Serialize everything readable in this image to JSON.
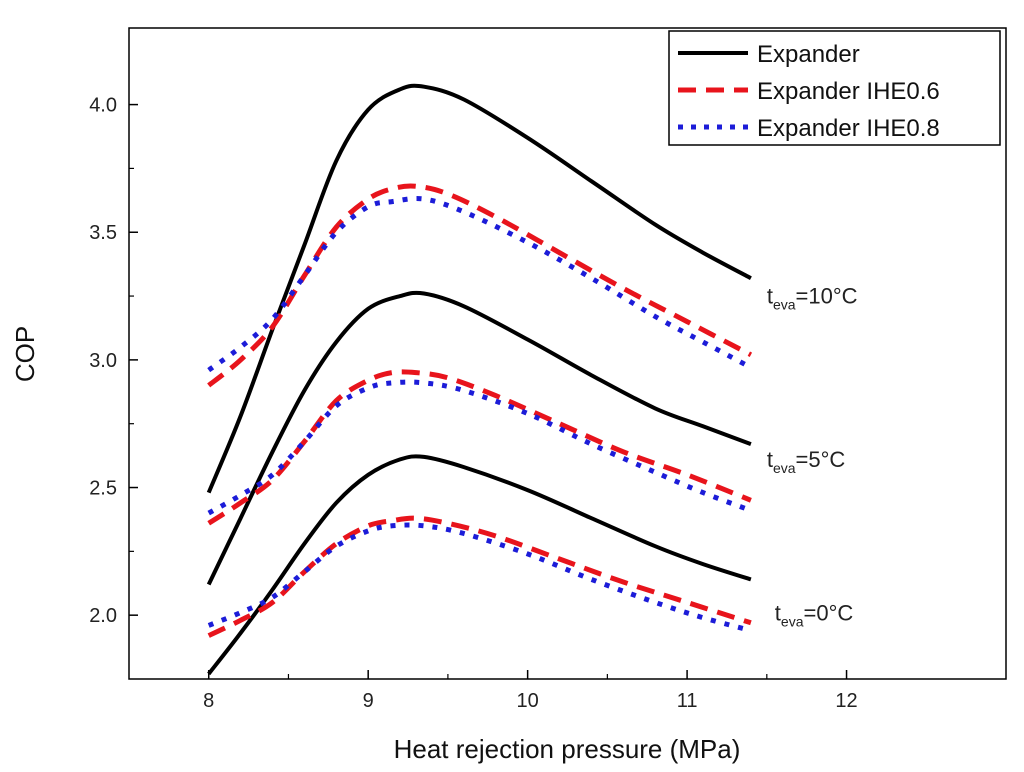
{
  "chart_data": {
    "type": "line",
    "title": "",
    "xlabel": "Heat rejection pressure (MPa)",
    "ylabel": "COP",
    "xlim": [
      7.5,
      13.0
    ],
    "ylim": [
      1.75,
      4.3
    ],
    "x_ticks": [
      8,
      9,
      10,
      11,
      12
    ],
    "y_ticks": [
      2.0,
      2.5,
      3.0,
      3.5,
      4.0
    ],
    "x_tick_labels": [
      "8",
      "9",
      "10",
      "11",
      "12"
    ],
    "y_tick_labels": [
      "2.0",
      "2.5",
      "3.0",
      "3.5",
      "4.0"
    ],
    "grid": false,
    "legend_position": "top-right",
    "legend": [
      {
        "name": "Expander",
        "color": "#000000",
        "style": "solid"
      },
      {
        "name": "Expander IHE0.6",
        "color": "#e8141c",
        "style": "dashed"
      },
      {
        "name": "Expander IHE0.8",
        "color": "#1c1cd8",
        "style": "dotted"
      }
    ],
    "annotations": [
      {
        "main": "t",
        "sub": "eva",
        "rest": "=10°C",
        "x": 11.5,
        "y": 3.22
      },
      {
        "main": "t",
        "sub": "eva",
        "rest": "=5°C",
        "x": 11.5,
        "y": 2.58
      },
      {
        "main": "t",
        "sub": "eva",
        "rest": "=0°C",
        "x": 11.55,
        "y": 1.98
      }
    ],
    "series": [
      {
        "group": "10°C",
        "legend_index": 0,
        "x": [
          8.0,
          8.2,
          8.4,
          8.6,
          8.8,
          9.0,
          9.2,
          9.35,
          9.6,
          10.0,
          10.4,
          10.8,
          11.1,
          11.4
        ],
        "y": [
          2.48,
          2.78,
          3.12,
          3.45,
          3.78,
          3.98,
          4.06,
          4.07,
          4.02,
          3.87,
          3.7,
          3.53,
          3.42,
          3.32
        ]
      },
      {
        "group": "10°C",
        "legend_index": 1,
        "x": [
          8.0,
          8.2,
          8.4,
          8.6,
          8.8,
          9.0,
          9.15,
          9.3,
          9.5,
          9.8,
          10.2,
          10.6,
          11.0,
          11.4
        ],
        "y": [
          2.9,
          3.0,
          3.13,
          3.33,
          3.52,
          3.63,
          3.67,
          3.68,
          3.65,
          3.56,
          3.42,
          3.28,
          3.15,
          3.02
        ]
      },
      {
        "group": "10°C",
        "legend_index": 2,
        "x": [
          8.0,
          8.2,
          8.4,
          8.6,
          8.8,
          9.0,
          9.15,
          9.35,
          9.6,
          10.0,
          10.4,
          10.8,
          11.1,
          11.4
        ],
        "y": [
          2.96,
          3.05,
          3.16,
          3.33,
          3.5,
          3.6,
          3.62,
          3.63,
          3.58,
          3.46,
          3.32,
          3.17,
          3.07,
          2.97
        ]
      },
      {
        "group": "5°C",
        "legend_index": 0,
        "x": [
          8.0,
          8.2,
          8.4,
          8.6,
          8.8,
          9.0,
          9.2,
          9.35,
          9.6,
          10.0,
          10.4,
          10.8,
          11.1,
          11.4
        ],
        "y": [
          2.12,
          2.38,
          2.64,
          2.88,
          3.07,
          3.2,
          3.25,
          3.26,
          3.21,
          3.08,
          2.94,
          2.81,
          2.74,
          2.67
        ]
      },
      {
        "group": "5°C",
        "legend_index": 1,
        "x": [
          8.0,
          8.2,
          8.4,
          8.6,
          8.8,
          9.0,
          9.15,
          9.3,
          9.5,
          9.8,
          10.2,
          10.6,
          11.0,
          11.4
        ],
        "y": [
          2.36,
          2.44,
          2.53,
          2.68,
          2.84,
          2.92,
          2.95,
          2.95,
          2.93,
          2.86,
          2.75,
          2.64,
          2.55,
          2.45
        ]
      },
      {
        "group": "5°C",
        "legend_index": 2,
        "x": [
          8.0,
          8.2,
          8.4,
          8.6,
          8.8,
          9.0,
          9.15,
          9.35,
          9.6,
          10.0,
          10.4,
          10.8,
          11.1,
          11.4
        ],
        "y": [
          2.4,
          2.47,
          2.55,
          2.68,
          2.82,
          2.89,
          2.91,
          2.91,
          2.88,
          2.79,
          2.67,
          2.56,
          2.48,
          2.41
        ]
      },
      {
        "group": "0°C",
        "legend_index": 0,
        "x": [
          8.0,
          8.2,
          8.4,
          8.6,
          8.8,
          9.0,
          9.2,
          9.35,
          9.6,
          10.0,
          10.4,
          10.8,
          11.1,
          11.4
        ],
        "y": [
          1.77,
          1.93,
          2.1,
          2.28,
          2.44,
          2.55,
          2.61,
          2.62,
          2.58,
          2.49,
          2.38,
          2.27,
          2.2,
          2.14
        ]
      },
      {
        "group": "0°C",
        "legend_index": 1,
        "x": [
          8.0,
          8.2,
          8.4,
          8.6,
          8.8,
          9.0,
          9.15,
          9.3,
          9.5,
          9.8,
          10.2,
          10.6,
          11.0,
          11.4
        ],
        "y": [
          1.92,
          1.98,
          2.05,
          2.17,
          2.28,
          2.35,
          2.37,
          2.38,
          2.36,
          2.31,
          2.22,
          2.13,
          2.05,
          1.97
        ]
      },
      {
        "group": "0°C",
        "legend_index": 2,
        "x": [
          8.0,
          8.2,
          8.4,
          8.6,
          8.8,
          9.0,
          9.15,
          9.35,
          9.6,
          10.0,
          10.4,
          10.8,
          11.1,
          11.4
        ],
        "y": [
          1.96,
          2.01,
          2.07,
          2.17,
          2.27,
          2.33,
          2.35,
          2.35,
          2.32,
          2.24,
          2.14,
          2.05,
          1.99,
          1.94
        ]
      }
    ]
  }
}
